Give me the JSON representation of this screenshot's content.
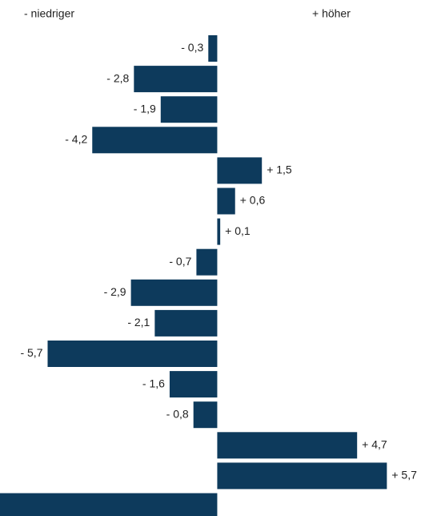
{
  "chart_data": {
    "type": "bar",
    "orientation": "horizontal",
    "left_label": "- niedriger",
    "right_label": "+ höher",
    "values": [
      -0.3,
      -2.8,
      -1.9,
      -4.2,
      1.5,
      0.6,
      0.1,
      -0.7,
      -2.9,
      -2.1,
      -5.7,
      -1.6,
      -0.8,
      4.7,
      5.7,
      -7.3
    ],
    "value_labels": [
      "- 0,3",
      "- 2,8",
      "- 1,9",
      "- 4,2",
      "+ 1,5",
      "+ 0,6",
      "+ 0,1",
      "- 0,7",
      "- 2,9",
      "- 2,1",
      "- 5,7",
      "- 1,6",
      "- 0,8",
      "+ 4,7",
      "+ 5,7",
      null
    ],
    "color": "#0d3a5c",
    "xlim": [
      -7.3,
      7.25
    ]
  }
}
